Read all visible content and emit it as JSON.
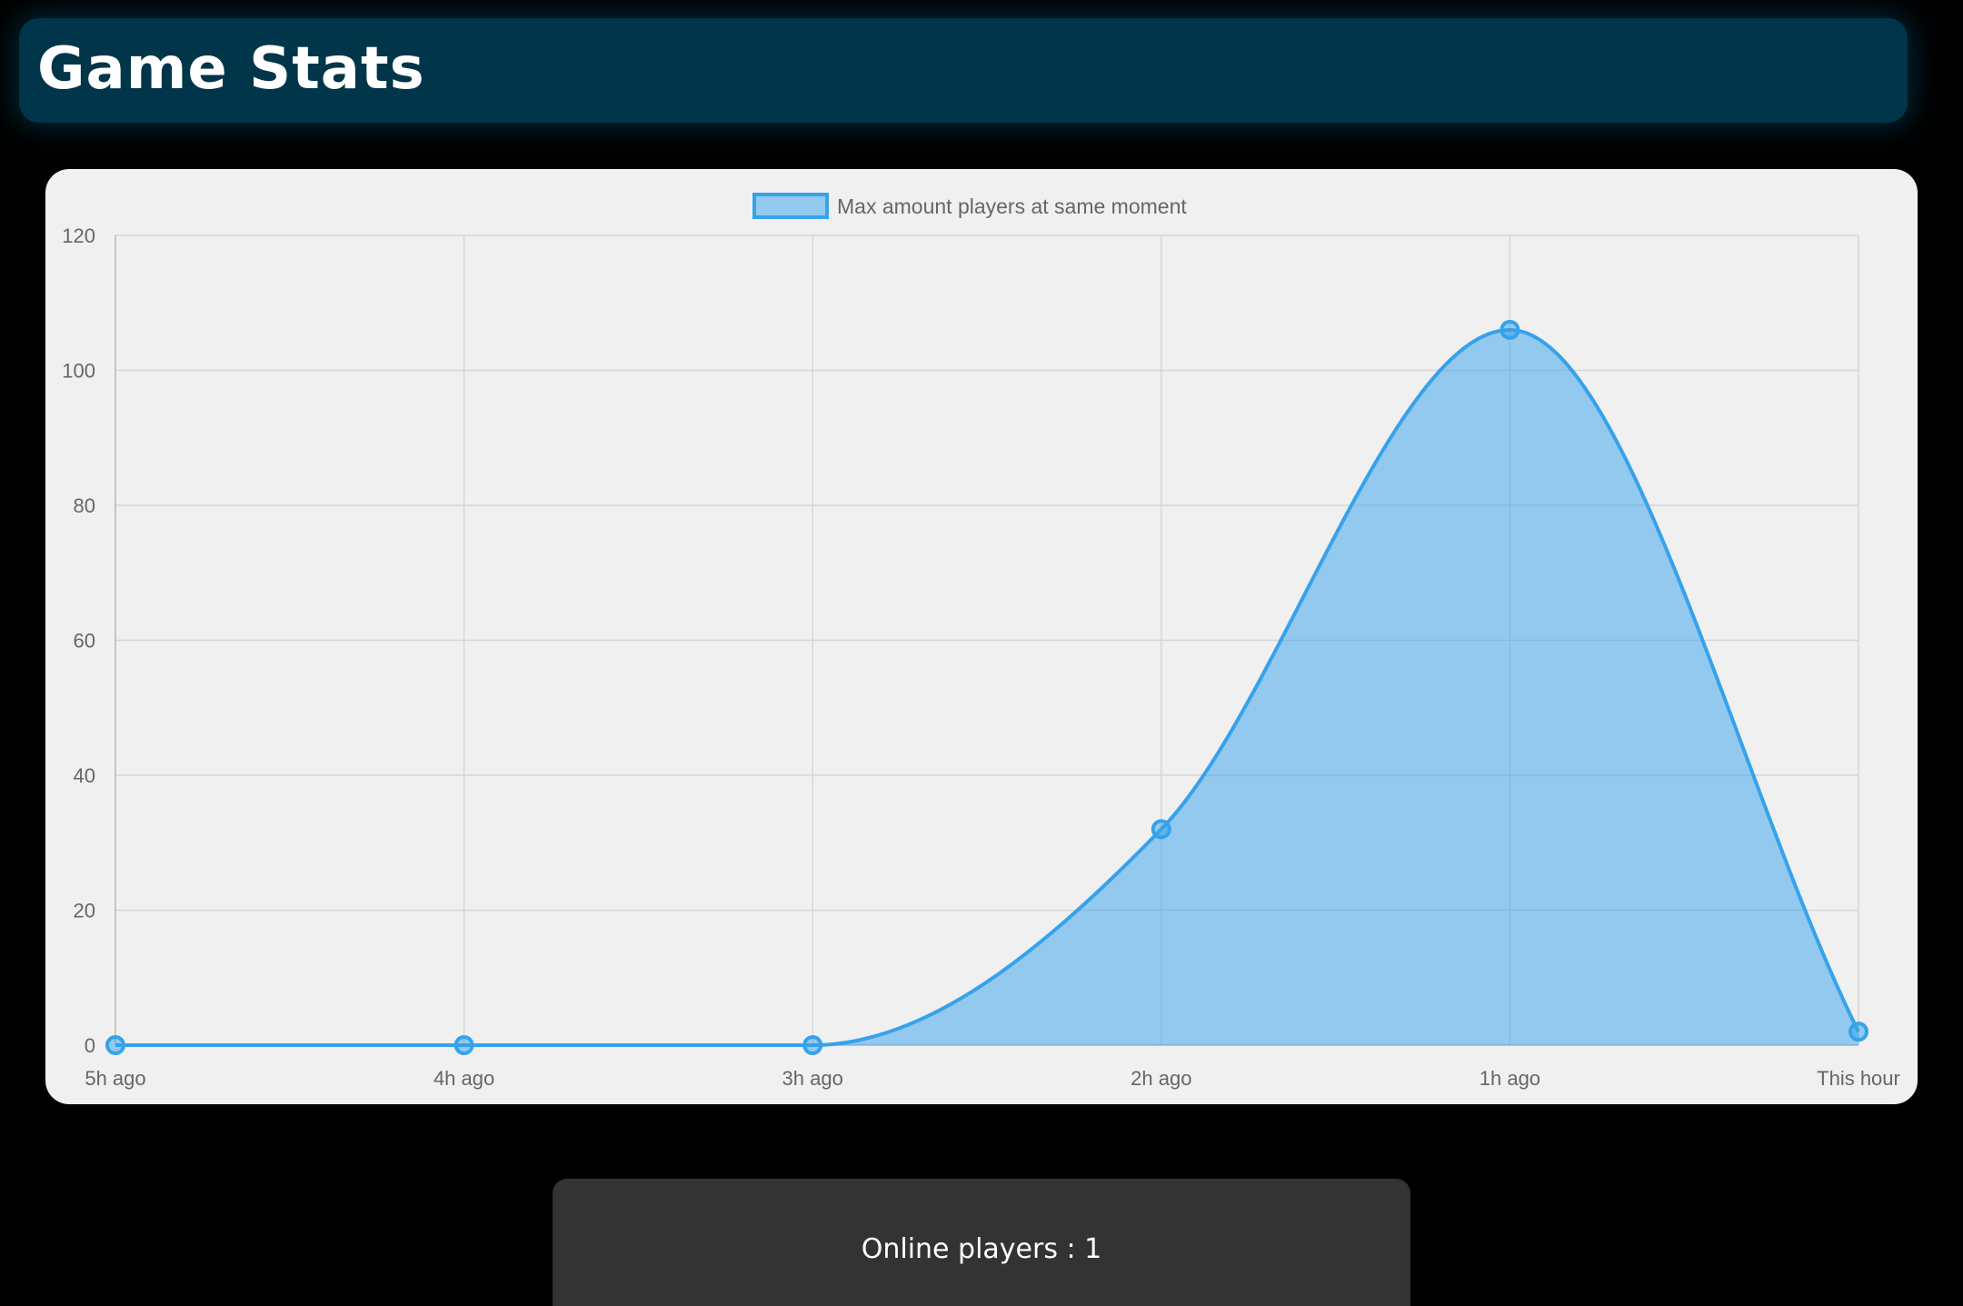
{
  "header": {
    "title": "Game Stats"
  },
  "online": {
    "label": "Online players : ",
    "count": "1"
  },
  "colors": {
    "line": "#36a2eb",
    "fill": "rgba(54,162,235,0.5)",
    "header_bg": "#00354a",
    "card_bg": "#f0f0f0",
    "panel_bg": "#333333"
  },
  "chart_data": {
    "type": "area",
    "categories": [
      "5h ago",
      "4h ago",
      "3h ago",
      "2h ago",
      "1h ago",
      "This hour"
    ],
    "series": [
      {
        "name": "Max amount players at same moment",
        "values": [
          0,
          0,
          0,
          32,
          106,
          2
        ]
      }
    ],
    "ylim": [
      0,
      120
    ],
    "yticks": [
      0,
      20,
      40,
      60,
      80,
      100,
      120
    ],
    "grid": true,
    "legend": "top-center",
    "curve": "smooth"
  }
}
